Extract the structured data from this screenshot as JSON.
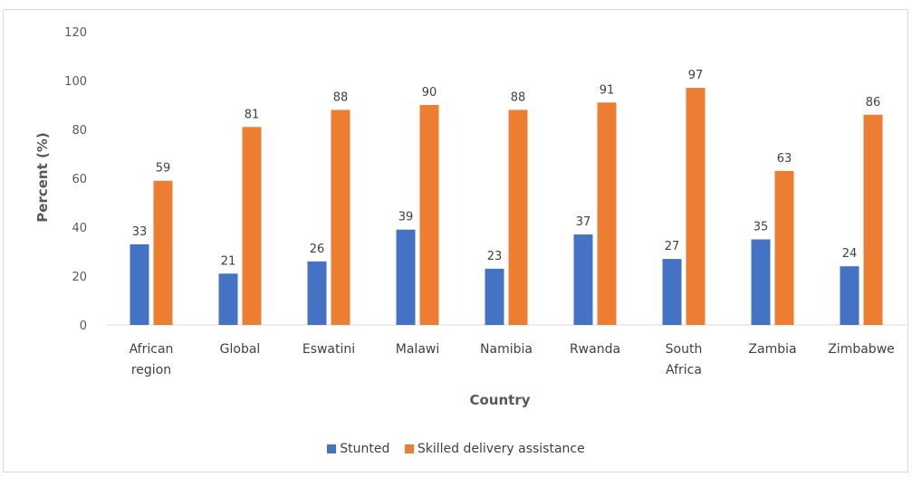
{
  "colors": {
    "stunted": "#4472C4",
    "skilled": "#ED7D31",
    "axis": "#d9d9d9"
  },
  "chart_data": {
    "type": "bar",
    "title": "",
    "xlabel": "Country",
    "ylabel": "Percent (%)",
    "ylim": [
      0,
      120
    ],
    "yticks": [
      0,
      20,
      40,
      60,
      80,
      100,
      120
    ],
    "grid": false,
    "legend_position": "bottom",
    "categories": [
      [
        "African",
        "region"
      ],
      [
        "Global"
      ],
      [
        "Eswatini"
      ],
      [
        "Malawi"
      ],
      [
        "Namibia"
      ],
      [
        "Rwanda"
      ],
      [
        "South",
        "Africa"
      ],
      [
        "Zambia"
      ],
      [
        "Zimbabwe"
      ]
    ],
    "series": [
      {
        "name": "Stunted",
        "values": [
          33,
          21,
          26,
          39,
          23,
          37,
          27,
          35,
          24
        ],
        "labels": [
          "33",
          "21",
          "26",
          "39",
          "23",
          "37",
          "27",
          "35",
          "24"
        ]
      },
      {
        "name": "Skilled delivery assistance",
        "values": [
          59,
          81,
          88,
          90,
          88,
          91,
          97,
          63,
          86
        ],
        "labels": [
          "59",
          "81",
          "88",
          "90",
          "88",
          "91",
          "97",
          "63",
          "86"
        ]
      }
    ]
  }
}
